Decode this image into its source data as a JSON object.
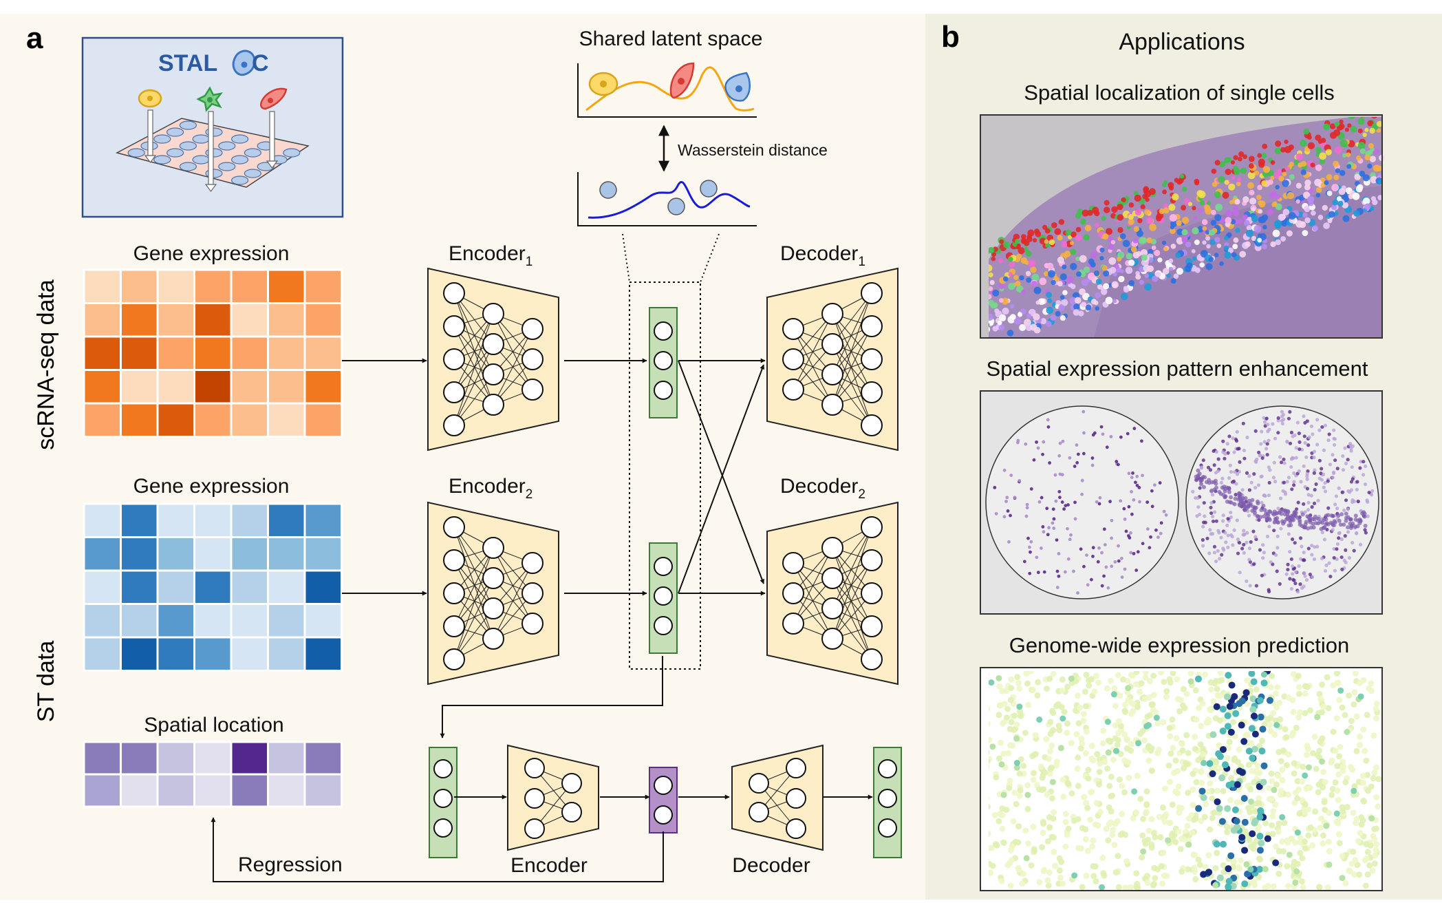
{
  "panel_a": {
    "label": "a",
    "logo_text_left": "STAL",
    "logo_text_right": "C",
    "latent_title": "Shared latent space",
    "wasserstein_label": "Wasserstein distance",
    "scrna_label": "scRNA-seq data",
    "st_label": "ST data",
    "gene_expression_1": "Gene expression",
    "gene_expression_2": "Gene expression",
    "spatial_location": "Spatial location",
    "encoder1": "Encoder",
    "encoder2": "Encoder",
    "decoder1": "Decoder",
    "decoder2": "Decoder",
    "sub1": "1",
    "sub2": "2",
    "encoder_small": "Encoder",
    "decoder_small": "Decoder",
    "regression": "Regression"
  },
  "panel_b": {
    "label": "b",
    "title": "Applications",
    "app1": "Spatial localization of single cells",
    "app2": "Spatial expression pattern enhancement",
    "app3": "Genome-wide expression prediction"
  },
  "colors": {
    "background_a": "#fdf8ef",
    "background_b": "#f1eee2",
    "encoder_fill": "#fdeec8",
    "latent_fill": "#c6dfb7",
    "latent_border": "#3d7a3a",
    "purple_fill": "#b490c8",
    "purple_border": "#5d2f7c",
    "orange_palette": [
      "#fcdcbd",
      "#fdbe8e",
      "#fca467",
      "#f2781f",
      "#dc5a0c",
      "#c34300"
    ],
    "blue_palette": [
      "#d6e5f4",
      "#b5d1ea",
      "#8cbddc",
      "#5899ce",
      "#2f7bbd",
      "#135ea8"
    ],
    "purple_palette": [
      "#e2e0ef",
      "#c5c3e0",
      "#a9a4d1",
      "#8a7cbb",
      "#7261aa",
      "#52288e"
    ]
  },
  "heatmaps": {
    "orange": [
      [
        0,
        1,
        0,
        2,
        2,
        3,
        2
      ],
      [
        1,
        3,
        1,
        4,
        0,
        1,
        2
      ],
      [
        4,
        4,
        2,
        3,
        2,
        1,
        1
      ],
      [
        3,
        0,
        0,
        5,
        1,
        1,
        3
      ],
      [
        2,
        3,
        4,
        2,
        1,
        0,
        2
      ]
    ],
    "blue": [
      [
        0,
        4,
        0,
        0,
        1,
        4,
        3
      ],
      [
        3,
        4,
        2,
        0,
        2,
        2,
        2
      ],
      [
        0,
        4,
        1,
        4,
        1,
        0,
        5
      ],
      [
        1,
        1,
        3,
        0,
        0,
        1,
        0
      ],
      [
        1,
        5,
        4,
        3,
        0,
        1,
        5
      ]
    ],
    "purple": [
      [
        3,
        3,
        1,
        0,
        5,
        1,
        3
      ],
      [
        2,
        0,
        1,
        0,
        3,
        0,
        1
      ]
    ]
  }
}
